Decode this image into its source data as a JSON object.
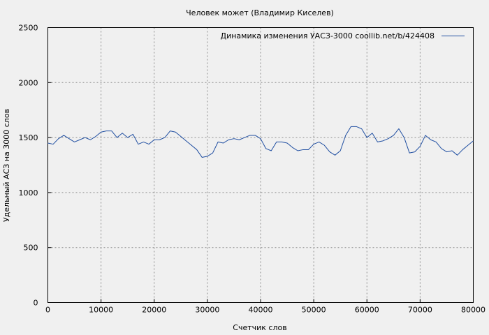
{
  "chart_data": {
    "type": "line",
    "title": "Человек может (Владимир Киселев)",
    "xlabel": "Счетчик слов",
    "ylabel": "Удельный АСЗ на 3000 слов",
    "xlim": [
      0,
      80000
    ],
    "ylim": [
      0,
      2500
    ],
    "x_ticks": [
      0,
      10000,
      20000,
      30000,
      40000,
      50000,
      60000,
      70000,
      80000
    ],
    "y_ticks": [
      0,
      500,
      1000,
      1500,
      2000,
      2500
    ],
    "grid": true,
    "legend_position": "top-right",
    "line_color": "#1f4ea1",
    "series": [
      {
        "name": "Динамика изменения УАСЗ-3000  coollib.net/b/424408",
        "x": [
          0,
          1000,
          2000,
          3000,
          4000,
          5000,
          6000,
          7000,
          8000,
          9000,
          10000,
          11000,
          12000,
          13000,
          14000,
          15000,
          16000,
          17000,
          18000,
          19000,
          20000,
          21000,
          22000,
          23000,
          24000,
          25000,
          26000,
          27000,
          28000,
          29000,
          30000,
          31000,
          32000,
          33000,
          34000,
          35000,
          36000,
          37000,
          38000,
          39000,
          40000,
          41000,
          42000,
          43000,
          44000,
          45000,
          46000,
          47000,
          48000,
          49000,
          50000,
          51000,
          52000,
          53000,
          54000,
          55000,
          56000,
          57000,
          58000,
          59000,
          60000,
          61000,
          62000,
          63000,
          64000,
          65000,
          66000,
          67000,
          68000,
          69000,
          70000,
          71000,
          72000,
          73000,
          74000,
          75000,
          76000,
          77000,
          78000,
          79000,
          80000
        ],
        "y": [
          1450,
          1440,
          1490,
          1520,
          1490,
          1460,
          1480,
          1500,
          1480,
          1510,
          1550,
          1560,
          1560,
          1500,
          1540,
          1500,
          1530,
          1440,
          1460,
          1440,
          1480,
          1480,
          1500,
          1560,
          1550,
          1510,
          1470,
          1430,
          1390,
          1320,
          1330,
          1360,
          1460,
          1450,
          1480,
          1490,
          1480,
          1500,
          1520,
          1520,
          1490,
          1400,
          1380,
          1460,
          1460,
          1450,
          1410,
          1380,
          1390,
          1390,
          1440,
          1460,
          1430,
          1370,
          1340,
          1380,
          1520,
          1600,
          1600,
          1580,
          1500,
          1540,
          1460,
          1470,
          1490,
          1520,
          1580,
          1500,
          1360,
          1370,
          1420,
          1520,
          1480,
          1460,
          1400,
          1370,
          1380,
          1340,
          1390,
          1430,
          1470
        ]
      }
    ]
  }
}
